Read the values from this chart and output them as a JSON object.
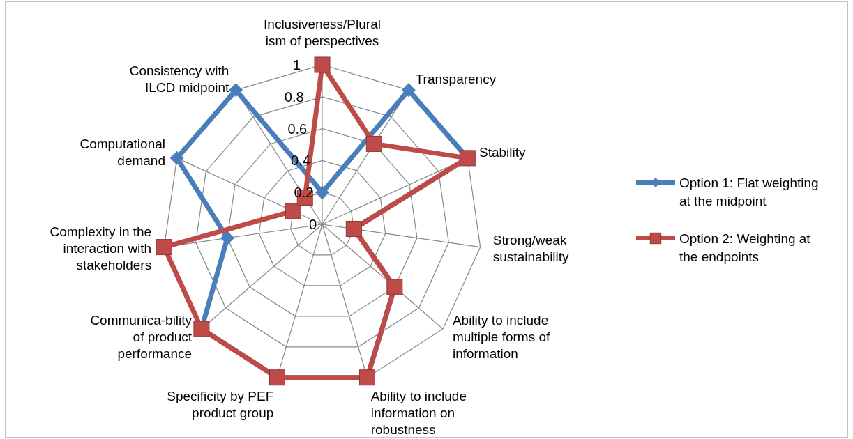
{
  "chart_data": {
    "type": "radar",
    "categories": [
      "Inclusiveness/Plural ism of perspectives",
      "Transparency",
      "Stability",
      "Strong/weak sustainability",
      "Ability to include multiple forms of information",
      "Ability to include information on robustness",
      "Specificity by PEF product group",
      "Communica-bility of product performance",
      "Complexity in the interaction with stakeholders",
      "Computational demand",
      "Consistency with ILCD midpoint"
    ],
    "series": [
      {
        "name": "Option 1: Flat weighting at the midpoint",
        "color": "#4a7ebb",
        "marker": "diamond",
        "values": [
          0.2,
          1,
          1,
          0.2,
          0.6,
          1,
          1,
          1,
          0.6,
          1,
          1
        ]
      },
      {
        "name": "Option 2: Weighting at the endpoints",
        "color": "#be4b48",
        "marker": "square",
        "values": [
          1,
          0.6,
          1,
          0.2,
          0.6,
          1,
          1,
          1,
          1,
          0.2,
          0.2
        ]
      }
    ],
    "ylim": [
      0,
      1
    ],
    "yticks": [
      0,
      0.2,
      0.4,
      0.6,
      0.8,
      1
    ],
    "grid": true,
    "legend": "right"
  }
}
